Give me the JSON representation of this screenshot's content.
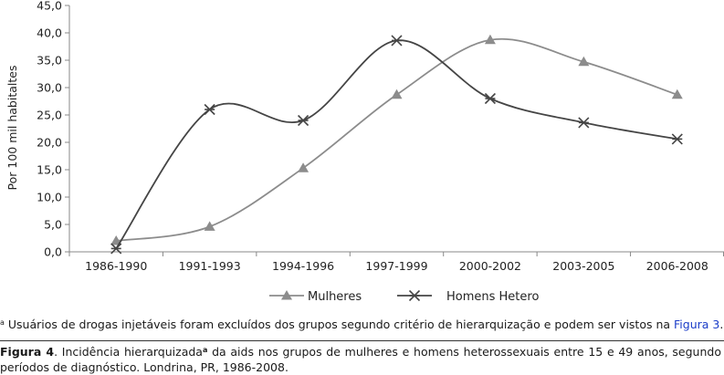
{
  "chart_data": {
    "type": "line",
    "ylabel": "Por 100 mil habitaltes",
    "ylim": [
      0,
      45
    ],
    "yticks": [
      "0,0",
      "5,0",
      "10,0",
      "15,0",
      "20,0",
      "25,0",
      "30,0",
      "35,0",
      "40,0",
      "45,0"
    ],
    "ytick_values": [
      0,
      5,
      10,
      15,
      20,
      25,
      30,
      35,
      40,
      45
    ],
    "categories": [
      "1986-1990",
      "1991-1993",
      "1994-1996",
      "1997-1999",
      "2000-2002",
      "2003-2005",
      "2006-2008"
    ],
    "grid": false,
    "legend_position": "bottom",
    "series": [
      {
        "name": "Mulheres",
        "marker": "triangle",
        "color": "#8c8c8c",
        "values": [
          2.0,
          4.6,
          15.3,
          28.7,
          38.7,
          34.7,
          28.7
        ]
      },
      {
        "name": "Homens Hetero",
        "marker": "asterisk",
        "color": "#454545",
        "values": [
          0.6,
          26.0,
          24.0,
          38.6,
          28.0,
          23.6,
          20.6
        ]
      }
    ]
  },
  "footnote": {
    "mark": "a",
    "text": "Usuários de drogas injetáveis foram excluídos dos grupos segundo critério de hierarquização e podem ser vistos na ",
    "link": "Figura 3",
    "end": "."
  },
  "caption": {
    "label": "Figura 4",
    "text_a": ". Incidência hierarquizada",
    "mark": "a",
    "text_b": " da aids nos grupos de mulheres e homens heterossexuais entre 15 e 49 anos, segundo períodos de diagnóstico. Londrina, PR, 1986-2008."
  }
}
